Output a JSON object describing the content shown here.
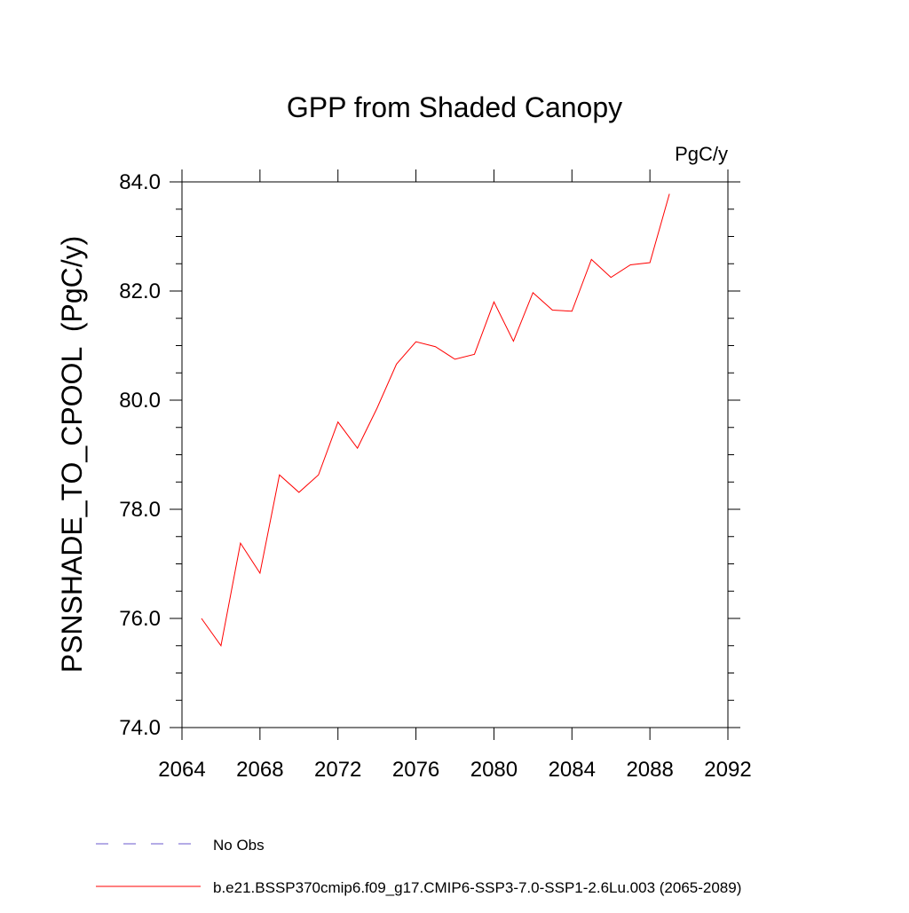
{
  "chart_data": {
    "type": "line",
    "title": "GPP from Shaded Canopy",
    "units_label": "PgC/y",
    "ylabel": "PSNSHADE_TO_CPOOL  (PgC/y)",
    "xlabel": "",
    "xlim": [
      2064,
      2092
    ],
    "ylim": [
      74.0,
      84.0
    ],
    "x_ticks": [
      2064,
      2068,
      2072,
      2076,
      2080,
      2084,
      2088,
      2092
    ],
    "x_tick_labels": [
      "2064",
      "2068",
      "2072",
      "2076",
      "2080",
      "2084",
      "2088",
      "2092"
    ],
    "y_ticks": [
      74.0,
      76.0,
      78.0,
      80.0,
      82.0,
      84.0
    ],
    "y_tick_labels": [
      "74.0",
      "76.0",
      "78.0",
      "80.0",
      "82.0",
      "84.0"
    ],
    "grid": false,
    "legend_placement": "bottom",
    "series": [
      {
        "name": "b.e21.BSSP370cmip6.f09_g17.CMIP6-SSP3-7.0-SSP1-2.6Lu.003 (2065-2089)",
        "color": "#ff0000",
        "style": "solid",
        "x": [
          2065,
          2066,
          2067,
          2068,
          2069,
          2070,
          2071,
          2072,
          2073,
          2074,
          2075,
          2076,
          2077,
          2078,
          2079,
          2080,
          2081,
          2082,
          2083,
          2084,
          2085,
          2086,
          2087,
          2088,
          2089
        ],
        "y": [
          76.0,
          75.5,
          77.38,
          76.83,
          78.63,
          78.31,
          78.63,
          79.6,
          79.12,
          79.85,
          80.66,
          81.07,
          80.98,
          80.75,
          80.84,
          81.8,
          81.08,
          81.97,
          81.65,
          81.63,
          82.58,
          82.25,
          82.48,
          82.52,
          83.78
        ]
      }
    ],
    "legend": [
      {
        "label": "No Obs",
        "color": "#6a5acd",
        "style": "dashed"
      },
      {
        "label": "b.e21.BSSP370cmip6.f09_g17.CMIP6-SSP3-7.0-SSP1-2.6Lu.003 (2065-2089)",
        "color": "#ff0000",
        "style": "solid"
      }
    ]
  }
}
